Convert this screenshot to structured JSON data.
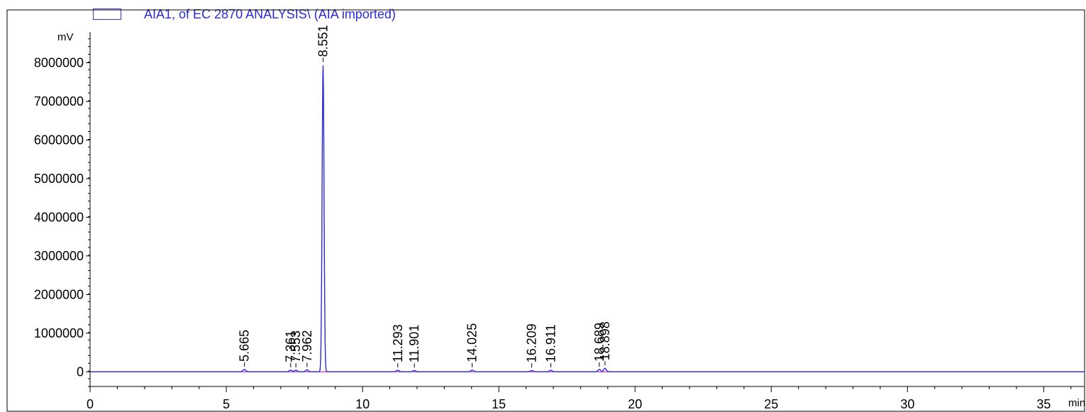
{
  "legend": {
    "series_label": "AIA1, of EC 2870 ANALYSIS\\ (AIA imported)",
    "series_color": "#2a2ad6"
  },
  "colors": {
    "trace": "#2a2ad6",
    "baseline": "#cc00cc",
    "axis": "#000000"
  },
  "chart_data": {
    "type": "line",
    "ylabel": "mV",
    "xlabel": "min",
    "xlim": [
      0,
      36.5
    ],
    "ylim": [
      -380000,
      8800000
    ],
    "x_ticks": [
      0,
      5,
      10,
      15,
      20,
      25,
      30,
      35
    ],
    "x_tick_labels": [
      "0",
      "5",
      "10",
      "15",
      "20",
      "25",
      "30",
      "35"
    ],
    "y_ticks": [
      0,
      1000000,
      2000000,
      3000000,
      4000000,
      5000000,
      6000000,
      7000000,
      8000000
    ],
    "y_tick_labels": [
      "0",
      "1000000",
      "2000000",
      "3000000",
      "4000000",
      "5000000",
      "6000000",
      "7000000",
      "8000000"
    ],
    "grid": false,
    "legend_position": "top-left",
    "peaks": [
      {
        "rt": 5.665,
        "label": "5.665",
        "height": 60000
      },
      {
        "rt": 7.361,
        "label": "7.361",
        "height": 45000
      },
      {
        "rt": 7.553,
        "label": "7.553",
        "height": 40000
      },
      {
        "rt": 7.962,
        "label": "7.962",
        "height": 50000
      },
      {
        "rt": 8.551,
        "label": "8.551",
        "height": 7950000
      },
      {
        "rt": 11.293,
        "label": "11.293",
        "height": 40000
      },
      {
        "rt": 11.901,
        "label": "11.901",
        "height": 35000
      },
      {
        "rt": 14.025,
        "label": "14.025",
        "height": 45000
      },
      {
        "rt": 16.209,
        "label": "16.209",
        "height": 35000
      },
      {
        "rt": 16.911,
        "label": "16.911",
        "height": 40000
      },
      {
        "rt": 18.689,
        "label": "18.689",
        "height": 60000
      },
      {
        "rt": 18.898,
        "label": "18.898",
        "height": 90000
      }
    ]
  }
}
